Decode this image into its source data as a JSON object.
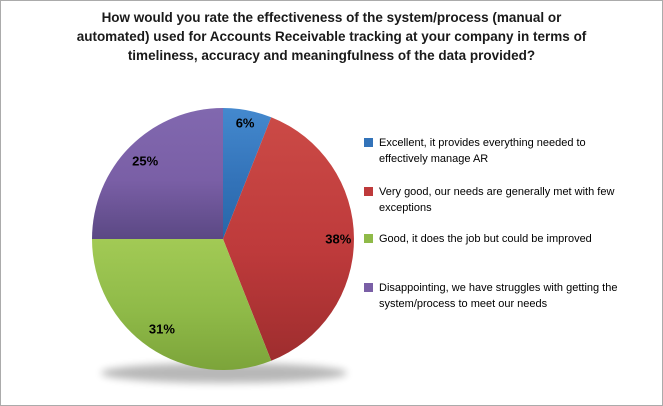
{
  "frame": {
    "background": "#FFFFFF",
    "border_color": "#ABABAB"
  },
  "chart_data": {
    "type": "pie",
    "title": "How would you rate the effectiveness of the system/process (manual or automated) used for Accounts Receivable tracking at your company in terms of timeliness, accuracy and meaningfulness of the data provided?",
    "title_lines": [
      "How would you rate the effectiveness of the system/process (manual or",
      "automated) used for Accounts Receivable tracking at your company in terms of",
      "timeliness, accuracy and meaningfulness of the data provided?"
    ],
    "legend_position": "right",
    "start_angle_deg": -90,
    "direction": "clockwise",
    "data_labels": "percent",
    "slices": [
      {
        "key": "excellent",
        "label": "Excellent, it provides everything needed to effectively manage AR",
        "label_lines": [
          "Excellent, it provides everything needed to",
          "effectively manage AR"
        ],
        "value_pct": 6,
        "data_label": "6%",
        "color": "#3373B9",
        "color_top": "#4489CE",
        "color_bottom": "#2766A8"
      },
      {
        "key": "very-good",
        "label": "Very good, our needs are generally met with few exceptions",
        "label_lines": [
          "Very good, our needs are generally met with few",
          "exceptions"
        ],
        "value_pct": 38,
        "data_label": "38%",
        "color": "#BE3A3B",
        "color_top": "#CB4A46",
        "color_bottom": "#9E2D2E"
      },
      {
        "key": "good",
        "label": "Good, it does the job but could be improved",
        "label_lines": [
          "Good, it does the job but could be improved"
        ],
        "value_pct": 31,
        "data_label": "31%",
        "color": "#8FBA48",
        "color_top": "#A2CA55",
        "color_bottom": "#7CA43A"
      },
      {
        "key": "disappointing",
        "label": "Disappointing, we have struggles with getting the system/process to meet our needs",
        "label_lines": [
          "Disappointing, we have struggles with getting the",
          "system/process to meet our needs"
        ],
        "value_pct": 25,
        "data_label": "25%",
        "color": "#7A5FA6",
        "color_top": "#8168AF",
        "color_bottom": "#5B4884"
      }
    ]
  }
}
